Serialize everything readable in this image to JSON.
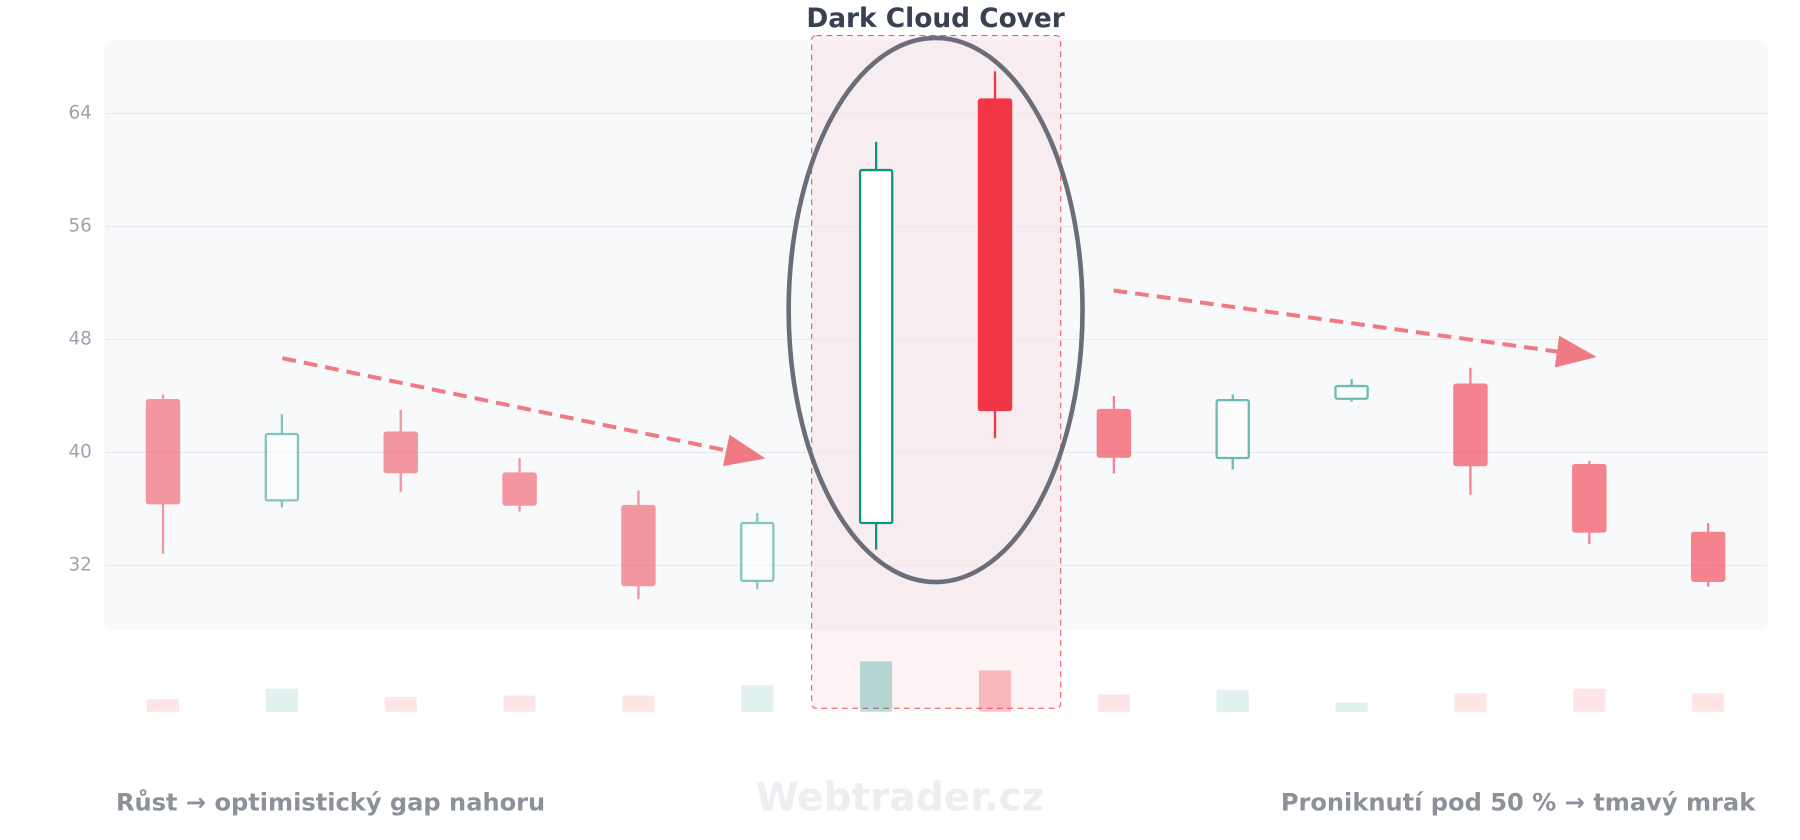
{
  "chart_data": {
    "type": "candlestick",
    "title": "Dark Cloud Cover",
    "open": [
      43.7,
      36.6,
      41.4,
      38.5,
      36.2,
      30.9,
      35.0,
      65.0,
      43.0,
      39.6,
      43.8,
      44.8,
      39.1,
      34.3
    ],
    "high": [
      44.1,
      42.7,
      43.0,
      39.6,
      37.3,
      35.7,
      62.0,
      67.0,
      44.0,
      44.1,
      45.2,
      46.0,
      39.4,
      35.0
    ],
    "low": [
      32.8,
      36.1,
      37.2,
      35.8,
      29.6,
      30.3,
      33.1,
      41.0,
      38.5,
      38.8,
      43.6,
      37.0,
      33.5,
      30.5
    ],
    "close": [
      36.4,
      41.3,
      38.6,
      36.3,
      30.6,
      35.0,
      60.0,
      43.0,
      39.7,
      43.7,
      44.7,
      39.1,
      34.4,
      30.9
    ],
    "volume": [
      11,
      20,
      13,
      14,
      14,
      23,
      44,
      36,
      15,
      19,
      8,
      16,
      20,
      16
    ],
    "up_color": "#0e9384",
    "down_color": "#f23645",
    "ylim": [
      27.4,
      69.2
    ],
    "yticks": [
      32,
      40,
      48,
      56,
      64
    ],
    "grid": true,
    "annotations": {
      "left": "Růst → optimistický gap nahoru",
      "right": "Proniknutí pod 50 % → tmavý mrak",
      "watermark": "Webtrader.cz"
    }
  }
}
